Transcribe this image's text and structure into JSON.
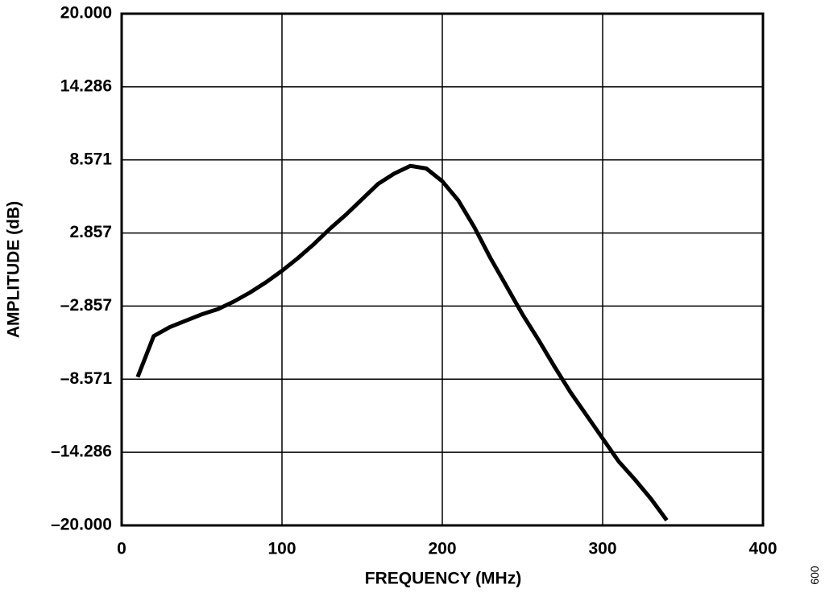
{
  "chart_data": {
    "type": "line",
    "xlabel": "FREQUENCY (MHz)",
    "ylabel": "AMPLITUDE (dB)",
    "figure_id": "009",
    "x": [
      10,
      20,
      30,
      40,
      50,
      60,
      70,
      80,
      90,
      100,
      110,
      120,
      130,
      140,
      150,
      160,
      170,
      180,
      190,
      200,
      210,
      220,
      230,
      240,
      250,
      260,
      270,
      280,
      290,
      300,
      310,
      320,
      330,
      340
    ],
    "series": [
      {
        "color": "#000000",
        "values": [
          -8.4,
          -5.2,
          -4.5,
          -4.0,
          -3.5,
          -3.1,
          -2.5,
          -1.8,
          -1.0,
          -0.1,
          0.9,
          2.0,
          3.2,
          4.3,
          5.5,
          6.7,
          7.5,
          8.1,
          7.9,
          6.9,
          5.4,
          3.3,
          0.9,
          -1.3,
          -3.5,
          -5.5,
          -7.6,
          -9.6,
          -11.4,
          -13.2,
          -15.0,
          -16.4,
          -17.9,
          -19.6
        ]
      }
    ],
    "xlim": [
      0,
      400
    ],
    "xticks": [
      0,
      100,
      200,
      300,
      400
    ],
    "ylim": [
      -20,
      20
    ],
    "yticks": [
      {
        "value": -20,
        "label": "–20.000"
      },
      {
        "value": -14.286,
        "label": "–14.286"
      },
      {
        "value": -8.571,
        "label": "–8.571"
      },
      {
        "value": -2.857,
        "label": "–2.857"
      },
      {
        "value": 2.857,
        "label": "2.857"
      },
      {
        "value": 8.571,
        "label": "8.571"
      },
      {
        "value": 14.286,
        "label": "14.286"
      },
      {
        "value": 20,
        "label": "20.000"
      }
    ],
    "grid": true
  }
}
